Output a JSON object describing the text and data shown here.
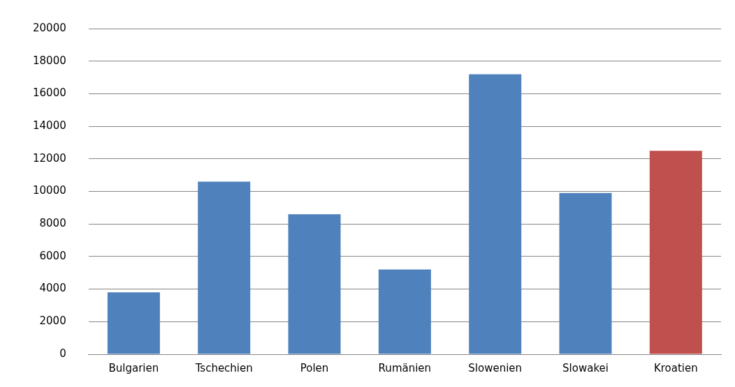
{
  "chart_data": {
    "type": "bar",
    "categories": [
      "Bulgarien",
      "Tschechien",
      "Polen",
      "Rumänien",
      "Slowenien",
      "Slowakei",
      "Kroatien"
    ],
    "values": [
      3800,
      10600,
      8600,
      5200,
      17200,
      9900,
      12500
    ],
    "colors": [
      "#4f81bd",
      "#4f81bd",
      "#4f81bd",
      "#4f81bd",
      "#4f81bd",
      "#4f81bd",
      "#c0504d"
    ],
    "ylim": [
      0,
      20000
    ],
    "yticks": [
      0,
      2000,
      4000,
      6000,
      8000,
      10000,
      12000,
      14000,
      16000,
      18000,
      20000
    ],
    "grid": "y",
    "legend": false
  }
}
